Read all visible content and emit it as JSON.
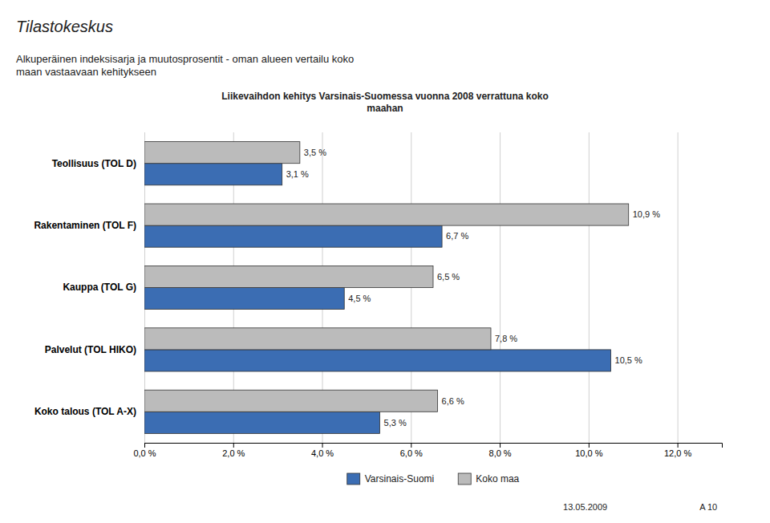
{
  "chart_data": {
    "type": "bar",
    "orientation": "horizontal",
    "title": "Alkuperäinen indeksisarja ja muutosprosentit - oman alueen vertailu koko\nmaan vastaavaan kehitykseen",
    "subtitle": "Liikevaihdon kehitys Varsinais-Suomessa vuonna 2008 verrattuna koko\nmaahan",
    "annotations": [
      "Tilastokeskus",
      "13.05.2009",
      "A 10"
    ],
    "categories": [
      "Koko talous (TOL A-X)",
      "Palvelut (TOL HIKO)",
      "Kauppa (TOL G)",
      "Rakentaminen (TOL F)",
      "Teollisuus (TOL D)"
    ],
    "series": [
      {
        "name": "Varsinais-Suomi",
        "color": "#3B6DB3",
        "values": [
          5.3,
          10.5,
          4.5,
          6.7,
          3.1
        ],
        "value_labels": [
          "5,3 %",
          "10,5 %",
          "4,5 %",
          "6,7 %",
          "3,1 %"
        ]
      },
      {
        "name": "Koko maa",
        "color": "#BBBBBB",
        "values": [
          6.6,
          7.8,
          6.5,
          10.9,
          3.5
        ],
        "value_labels": [
          "6,6 %",
          "7,8 %",
          "6,5 %",
          "10,9 %",
          "3,5 %"
        ]
      }
    ],
    "xlim": [
      0,
      13.0
    ],
    "xticks": [
      {
        "value": 0,
        "label": "0,0 %"
      },
      {
        "value": 2,
        "label": "2,0 %"
      },
      {
        "value": 4,
        "label": "4,0 %"
      },
      {
        "value": 6,
        "label": "6,0 %"
      },
      {
        "value": 8,
        "label": "8,0 %"
      },
      {
        "value": 10,
        "label": "10,0 %"
      },
      {
        "value": 12,
        "label": "12,0 %"
      }
    ],
    "grid": true,
    "data_labels": true,
    "legend": "bottom"
  }
}
